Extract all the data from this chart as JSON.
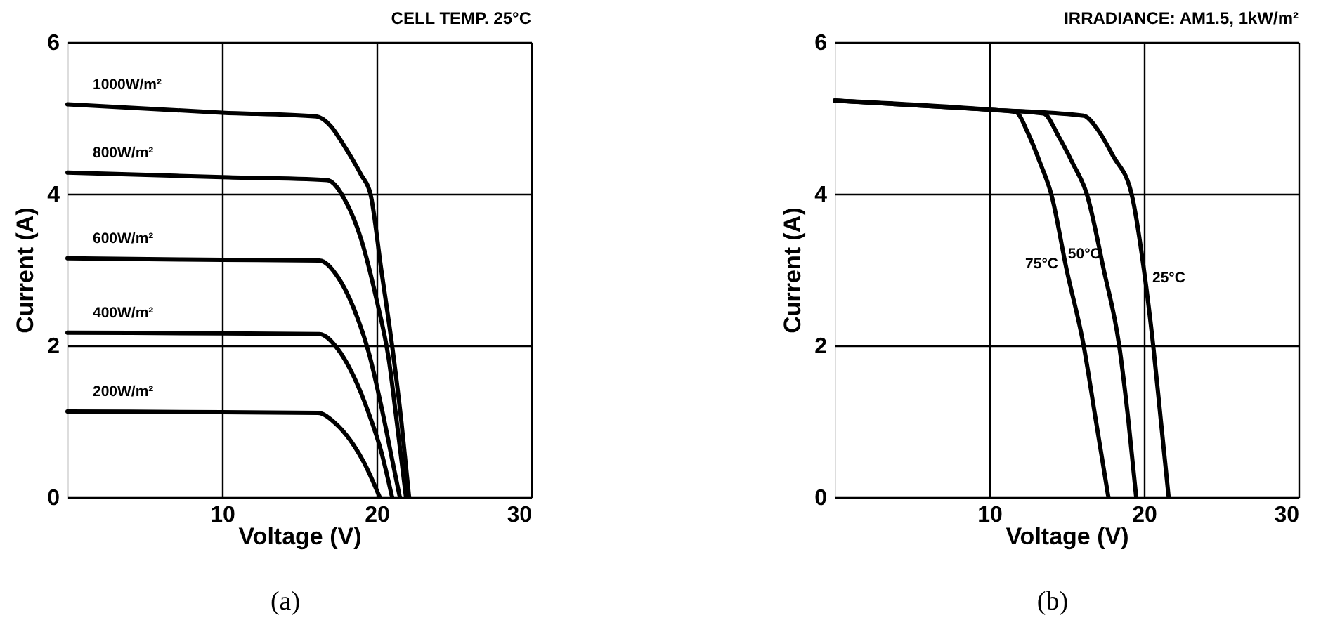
{
  "chart_data": [
    {
      "type": "line",
      "title": "CELL TEMP. 25°C",
      "xlabel": "Voltage (V)",
      "ylabel": "Current (A)",
      "xlim": [
        0,
        30
      ],
      "ylim": [
        0,
        6
      ],
      "xticks": [
        10,
        20,
        30
      ],
      "yticks": [
        0,
        2,
        4,
        6
      ],
      "grid": true,
      "legend": false,
      "marker": "none",
      "line_style": "solid",
      "annotations": [
        "(a)"
      ],
      "series": [
        {
          "name": "1000W/m²",
          "color": "#000000",
          "x": [
            0,
            10,
            16.1,
            17,
            18,
            19,
            19.6,
            20.3,
            21.0,
            21.6,
            22.1
          ],
          "values": [
            5.18,
            5.07,
            5.02,
            4.9,
            4.6,
            4.25,
            4.0,
            3.0,
            2.0,
            1.0,
            0
          ]
        },
        {
          "name": "800W/m²",
          "color": "#000000",
          "x": [
            0,
            10,
            16.8,
            18,
            19,
            20,
            20.8,
            21.3,
            21.9
          ],
          "values": [
            4.28,
            4.22,
            4.18,
            3.9,
            3.4,
            2.6,
            1.8,
            1.0,
            0
          ]
        },
        {
          "name": "600W/m²",
          "color": "#000000",
          "x": [
            0,
            10,
            16.3,
            17.5,
            18.5,
            19.5,
            20.3,
            21.0,
            21.5
          ],
          "values": [
            3.15,
            3.13,
            3.12,
            2.9,
            2.5,
            1.9,
            1.2,
            0.5,
            0
          ]
        },
        {
          "name": "400W/m²",
          "color": "#000000",
          "x": [
            0,
            10,
            16.3,
            17.5,
            18.5,
            19.5,
            20.3,
            21.0
          ],
          "values": [
            2.17,
            2.16,
            2.15,
            1.95,
            1.6,
            1.1,
            0.6,
            0
          ]
        },
        {
          "name": "200W/m²",
          "color": "#000000",
          "x": [
            0,
            10,
            16.2,
            17.3,
            18.3,
            19.2,
            20.2
          ],
          "values": [
            1.13,
            1.12,
            1.11,
            0.98,
            0.75,
            0.45,
            0
          ]
        }
      ]
    },
    {
      "type": "line",
      "title": "IRRADIANCE: AM1.5, 1kW/m²",
      "xlabel": "Voltage (V)",
      "ylabel": "Current (A)",
      "xlim": [
        0,
        30
      ],
      "ylim": [
        0,
        6
      ],
      "xticks": [
        10,
        20,
        30
      ],
      "yticks": [
        0,
        2,
        4,
        6
      ],
      "grid": true,
      "legend": false,
      "marker": "none",
      "line_style": "solid",
      "annotations": [
        "(b)"
      ],
      "series": [
        {
          "name": "75°C",
          "color": "#000000",
          "x": [
            0,
            10,
            11.7,
            12.5,
            13.3,
            14.0,
            15.0,
            16.1,
            16.9,
            17.7
          ],
          "values": [
            5.23,
            5.11,
            5.08,
            4.8,
            4.4,
            4.0,
            3.0,
            2.0,
            1.0,
            0
          ]
        },
        {
          "name": "50°C",
          "color": "#000000",
          "x": [
            0,
            10,
            13.5,
            14.5,
            15.4,
            16.3,
            17.4,
            18.4,
            19.0,
            19.5
          ],
          "values": [
            5.23,
            5.11,
            5.06,
            4.75,
            4.4,
            4.0,
            3.0,
            2.0,
            1.0,
            0
          ]
        },
        {
          "name": "25°C",
          "color": "#000000",
          "x": [
            0,
            10,
            16.1,
            17,
            18,
            19.2,
            20.0,
            20.6,
            21.1,
            21.6
          ],
          "values": [
            5.23,
            5.11,
            5.03,
            4.85,
            4.5,
            4.0,
            3.0,
            2.0,
            1.0,
            0
          ]
        }
      ]
    }
  ]
}
